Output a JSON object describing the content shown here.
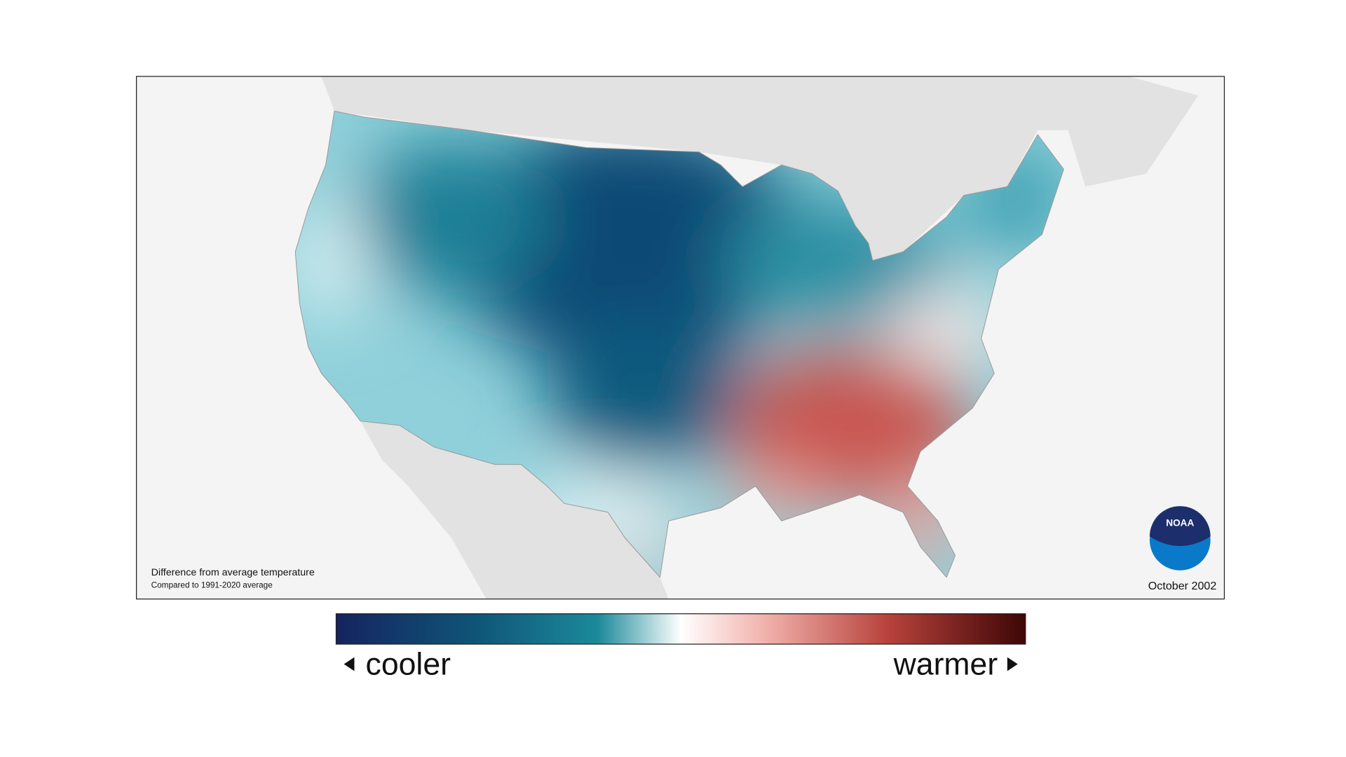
{
  "map": {
    "legend_title": "Difference from average temperature",
    "legend_subtitle": "Compared to 1991-2020 average",
    "date": "October 2002",
    "logo": "NOAA"
  },
  "colorbar": {
    "low_label": "cooler",
    "high_label": "warmer"
  }
}
